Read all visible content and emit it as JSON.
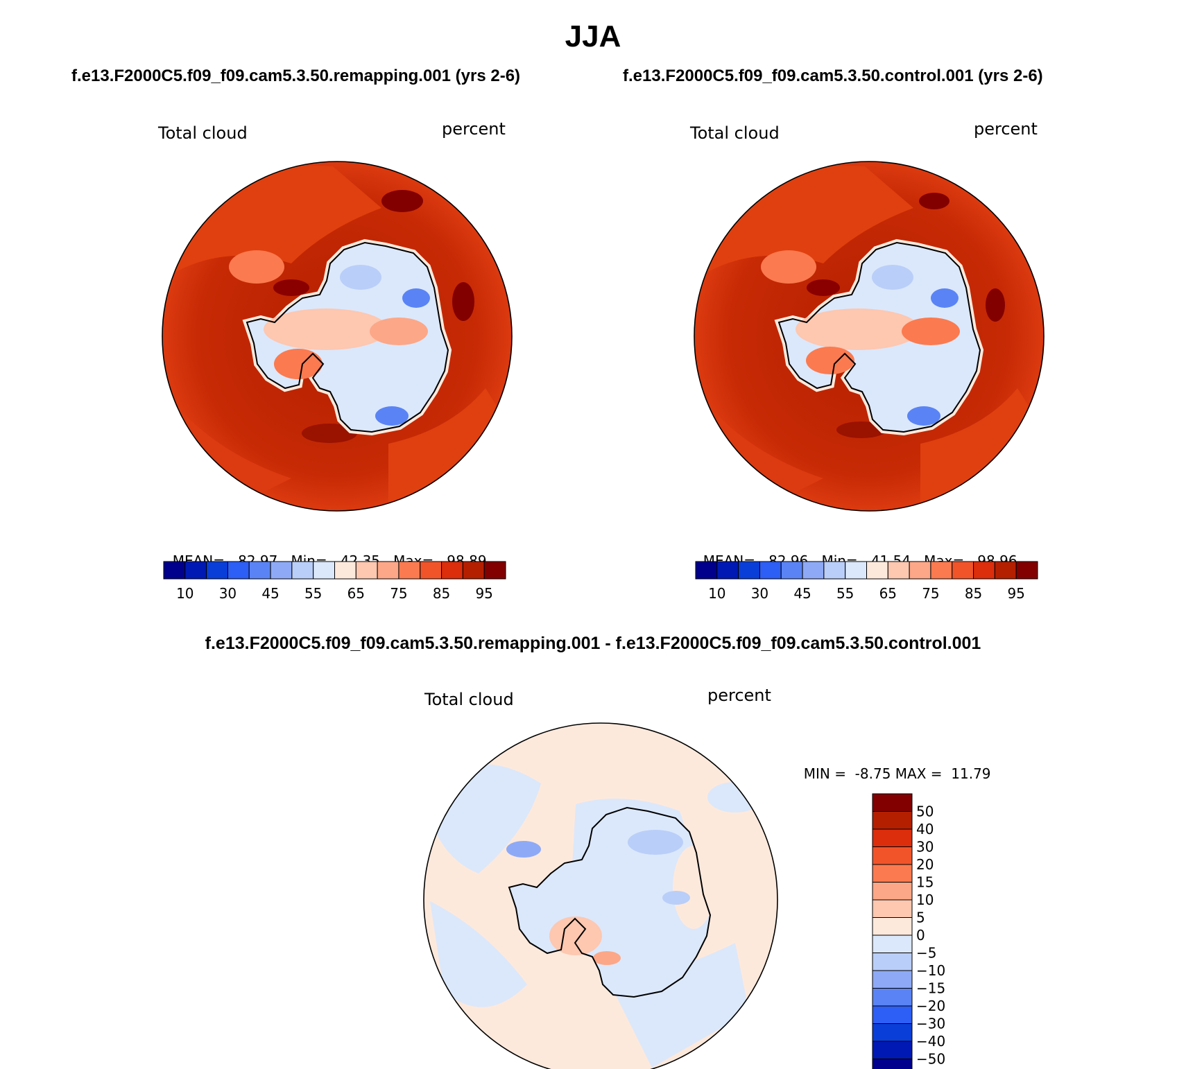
{
  "title": "JJA",
  "panel_left": {
    "case": "f.e13.F2000C5.f09_f09.cam5.3.50.remapping.001 (yrs 2-6)",
    "variable": "Total cloud",
    "units": "percent",
    "stats": {
      "mean_label": "MEAN=",
      "mean": "82.97",
      "min_label": "Min=",
      "min": "42.35",
      "max_label": "Max=",
      "max": "98.89"
    }
  },
  "panel_right": {
    "case": "f.e13.F2000C5.f09_f09.cam5.3.50.control.001 (yrs 2-6)",
    "variable": "Total cloud",
    "units": "percent",
    "stats": {
      "mean_label": "MEAN=",
      "mean": "82.96",
      "min_label": "Min=",
      "min": "41.54",
      "max_label": "Max=",
      "max": "98.96"
    }
  },
  "panel_diff": {
    "case": "f.e13.F2000C5.f09_f09.cam5.3.50.remapping.001 - f.e13.F2000C5.f09_f09.cam5.3.50.control.001",
    "variable": "Total cloud",
    "units": "percent",
    "stats": {
      "min_label": "MIN =",
      "min": "-8.75",
      "max_label": "MAX =",
      "max": "11.79"
    }
  },
  "colorbar_main": {
    "tick_labels": [
      "10",
      "30",
      "45",
      "55",
      "65",
      "75",
      "85",
      "95"
    ],
    "colors": [
      "#00008c",
      "#0019b4",
      "#0a3ed9",
      "#2d5ef5",
      "#5a84f5",
      "#8eaaf6",
      "#b9cef8",
      "#dbe8fb",
      "#fde9dc",
      "#fdc7b0",
      "#fca787",
      "#fb7a4f",
      "#f2542a",
      "#dc2d0c",
      "#b41f00",
      "#820000"
    ]
  },
  "colorbar_diff": {
    "tick_labels": [
      "50",
      "40",
      "30",
      "20",
      "15",
      "10",
      "5",
      "0",
      "−5",
      "−10",
      "−15",
      "−20",
      "−30",
      "−40",
      "−50"
    ],
    "colors": [
      "#820000",
      "#b41f00",
      "#dc2d0c",
      "#f2542a",
      "#fb7a4f",
      "#fca787",
      "#fdc7b0",
      "#fde9dc",
      "#dbe8fb",
      "#b9cef8",
      "#8eaaf6",
      "#5a84f5",
      "#2d5ef5",
      "#0a3ed9",
      "#0019b4",
      "#00008c"
    ]
  },
  "chart_data": [
    {
      "type": "heatmap",
      "title": "f.e13.F2000C5.f09_f09.cam5.3.50.remapping.001 (yrs 2-6)",
      "variable": "Total cloud",
      "units": "percent",
      "projection": "south polar stereographic",
      "levels": [
        10,
        20,
        30,
        40,
        45,
        50,
        55,
        60,
        65,
        70,
        75,
        80,
        85,
        90,
        95
      ],
      "mean": 82.97,
      "min": 42.35,
      "max": 98.89
    },
    {
      "type": "heatmap",
      "title": "f.e13.F2000C5.f09_f09.cam5.3.50.control.001 (yrs 2-6)",
      "variable": "Total cloud",
      "units": "percent",
      "projection": "south polar stereographic",
      "levels": [
        10,
        20,
        30,
        40,
        45,
        50,
        55,
        60,
        65,
        70,
        75,
        80,
        85,
        90,
        95
      ],
      "mean": 82.96,
      "min": 41.54,
      "max": 98.96
    },
    {
      "type": "heatmap",
      "title": "f.e13.F2000C5.f09_f09.cam5.3.50.remapping.001 - f.e13.F2000C5.f09_f09.cam5.3.50.control.001",
      "variable": "Total cloud",
      "units": "percent",
      "projection": "south polar stereographic",
      "levels": [
        -50,
        -40,
        -30,
        -20,
        -15,
        -10,
        -5,
        0,
        5,
        10,
        15,
        20,
        30,
        40,
        50
      ],
      "min": -8.75,
      "max": 11.79
    }
  ]
}
